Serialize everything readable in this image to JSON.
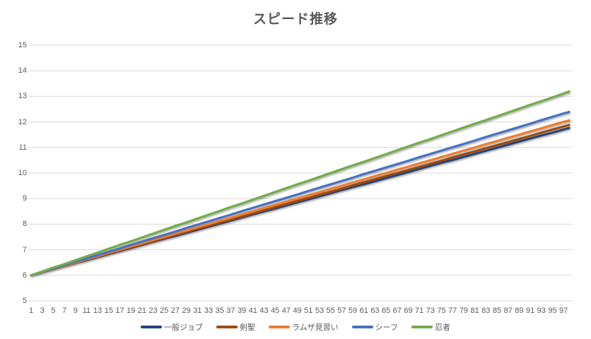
{
  "title": "スピード推移",
  "colors": {
    "background": "#FFFFFF",
    "gridline": "#D9D9D9",
    "axis_line": "#D9D9D9",
    "text": "#595959"
  },
  "chart_data": {
    "type": "line",
    "title": "スピード推移",
    "xlabel": "",
    "ylabel": "",
    "ylim": [
      5,
      15
    ],
    "yticks": [
      5,
      6,
      7,
      8,
      9,
      10,
      11,
      12,
      13,
      14,
      15
    ],
    "grid": true,
    "legend_position": "bottom",
    "x_ticks": [
      1,
      3,
      5,
      7,
      9,
      11,
      13,
      15,
      17,
      19,
      21,
      23,
      25,
      27,
      29,
      31,
      33,
      35,
      37,
      39,
      41,
      43,
      45,
      47,
      49,
      51,
      53,
      55,
      57,
      59,
      61,
      63,
      65,
      67,
      69,
      71,
      73,
      75,
      77,
      79,
      81,
      83,
      85,
      87,
      89,
      91,
      93,
      95,
      97
    ],
    "x": [
      1,
      3,
      5,
      7,
      9,
      11,
      13,
      15,
      17,
      19,
      21,
      23,
      25,
      27,
      29,
      31,
      33,
      35,
      37,
      39,
      41,
      43,
      45,
      47,
      49,
      51,
      53,
      55,
      57,
      59,
      61,
      63,
      65,
      67,
      69,
      71,
      73,
      75,
      77,
      79,
      81,
      83,
      85,
      87,
      89,
      91,
      93,
      95,
      97,
      98
    ],
    "series": [
      {
        "name": "一般ジョブ",
        "color": "#264478",
        "values": [
          6.0,
          6.12,
          6.24,
          6.36,
          6.48,
          6.59,
          6.71,
          6.83,
          6.95,
          7.07,
          7.19,
          7.31,
          7.43,
          7.54,
          7.66,
          7.78,
          7.9,
          8.02,
          8.14,
          8.26,
          8.38,
          8.5,
          8.61,
          8.73,
          8.85,
          8.97,
          9.09,
          9.21,
          9.33,
          9.45,
          9.56,
          9.68,
          9.8,
          9.92,
          10.04,
          10.16,
          10.28,
          10.4,
          10.51,
          10.63,
          10.75,
          10.87,
          10.99,
          11.11,
          11.23,
          11.35,
          11.47,
          11.58,
          11.7,
          11.76
        ]
      },
      {
        "name": "剣聖",
        "color": "#9E480E",
        "values": [
          6.0,
          6.12,
          6.24,
          6.36,
          6.48,
          6.61,
          6.73,
          6.85,
          6.97,
          7.09,
          7.21,
          7.33,
          7.45,
          7.58,
          7.7,
          7.82,
          7.94,
          8.06,
          8.18,
          8.3,
          8.42,
          8.55,
          8.67,
          8.79,
          8.91,
          9.03,
          9.15,
          9.27,
          9.39,
          9.52,
          9.64,
          9.76,
          9.88,
          10.0,
          10.12,
          10.24,
          10.36,
          10.48,
          10.61,
          10.73,
          10.85,
          10.97,
          11.09,
          11.21,
          11.33,
          11.45,
          11.58,
          11.7,
          11.82,
          11.88
        ]
      },
      {
        "name": "ラムザ見習い",
        "color": "#ED7D31",
        "values": [
          6.0,
          6.13,
          6.25,
          6.38,
          6.5,
          6.63,
          6.75,
          6.88,
          7.0,
          7.13,
          7.25,
          7.38,
          7.5,
          7.63,
          7.75,
          7.88,
          8.0,
          8.13,
          8.25,
          8.38,
          8.5,
          8.63,
          8.75,
          8.88,
          9.0,
          9.13,
          9.25,
          9.38,
          9.5,
          9.63,
          9.75,
          9.88,
          10.0,
          10.13,
          10.25,
          10.38,
          10.5,
          10.63,
          10.75,
          10.88,
          11.0,
          11.13,
          11.25,
          11.38,
          11.5,
          11.63,
          11.75,
          11.88,
          12.0,
          12.06
        ]
      },
      {
        "name": "シーフ",
        "color": "#4472C4",
        "values": [
          6.0,
          6.13,
          6.26,
          6.4,
          6.53,
          6.66,
          6.79,
          6.92,
          7.05,
          7.19,
          7.32,
          7.45,
          7.58,
          7.71,
          7.85,
          7.98,
          8.11,
          8.24,
          8.37,
          8.51,
          8.64,
          8.77,
          8.9,
          9.03,
          9.16,
          9.3,
          9.43,
          9.56,
          9.69,
          9.82,
          9.96,
          10.09,
          10.22,
          10.35,
          10.48,
          10.62,
          10.75,
          10.88,
          11.01,
          11.14,
          11.27,
          11.41,
          11.54,
          11.67,
          11.8,
          11.93,
          12.07,
          12.2,
          12.33,
          12.39
        ]
      },
      {
        "name": "忍者",
        "color": "#70AD47",
        "values": [
          6.0,
          6.15,
          6.3,
          6.44,
          6.59,
          6.74,
          6.89,
          7.04,
          7.19,
          7.33,
          7.48,
          7.63,
          7.78,
          7.93,
          8.07,
          8.22,
          8.37,
          8.52,
          8.67,
          8.81,
          8.96,
          9.11,
          9.26,
          9.41,
          9.56,
          9.7,
          9.85,
          10.0,
          10.15,
          10.3,
          10.44,
          10.59,
          10.74,
          10.89,
          11.04,
          11.19,
          11.33,
          11.48,
          11.63,
          11.78,
          11.93,
          12.07,
          12.22,
          12.37,
          12.52,
          12.67,
          12.81,
          12.96,
          13.11,
          13.19
        ]
      }
    ]
  }
}
